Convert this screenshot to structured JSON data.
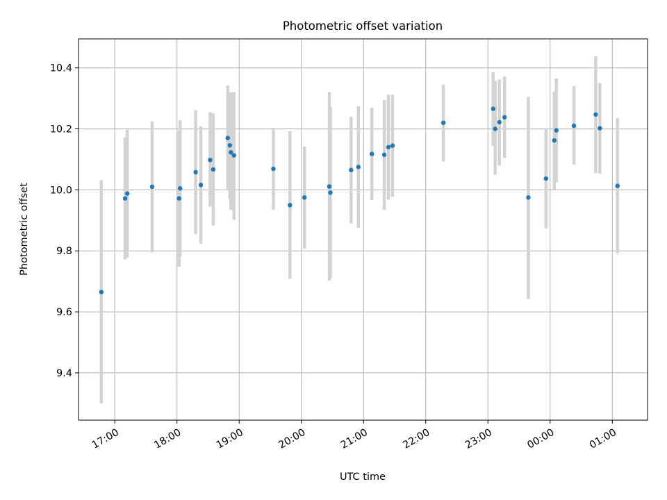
{
  "chart_data": {
    "type": "scatter",
    "title": "Photometric offset variation",
    "xlabel": "UTC time",
    "ylabel": "Photometric offset",
    "x_axis_type": "time",
    "x_range": [
      "16:25",
      "01:34"
    ],
    "ylim": [
      9.245,
      10.495
    ],
    "x_ticks": [
      "17:00",
      "18:00",
      "19:00",
      "20:00",
      "21:00",
      "22:00",
      "23:00",
      "00:00",
      "01:00"
    ],
    "y_ticks": [
      9.4,
      9.6,
      9.8,
      10.0,
      10.2,
      10.4
    ],
    "y_tick_labels": [
      "9.4",
      "9.6",
      "9.8",
      "10.0",
      "10.2",
      "10.4"
    ],
    "grid": true,
    "marker_color": "#1f77b4",
    "errorbar_color": "#d3d3d3",
    "points": [
      {
        "t": "16:47",
        "y": 9.665,
        "low": 9.3,
        "high": 10.032
      },
      {
        "t": "17:10",
        "y": 9.972,
        "low": 9.772,
        "high": 10.172
      },
      {
        "t": "17:12",
        "y": 9.988,
        "low": 9.778,
        "high": 10.198
      },
      {
        "t": "17:36",
        "y": 10.01,
        "low": 9.795,
        "high": 10.225
      },
      {
        "t": "18:02",
        "y": 9.972,
        "low": 9.748,
        "high": 10.195
      },
      {
        "t": "18:03",
        "y": 10.005,
        "low": 9.782,
        "high": 10.228
      },
      {
        "t": "18:18",
        "y": 10.058,
        "low": 9.855,
        "high": 10.261
      },
      {
        "t": "18:23",
        "y": 10.016,
        "low": 9.823,
        "high": 10.208
      },
      {
        "t": "18:32",
        "y": 10.098,
        "low": 9.945,
        "high": 10.255
      },
      {
        "t": "18:35",
        "y": 10.067,
        "low": 9.883,
        "high": 10.251
      },
      {
        "t": "18:49",
        "y": 10.17,
        "low": 10.002,
        "high": 10.342
      },
      {
        "t": "18:51",
        "y": 10.146,
        "low": 9.972,
        "high": 10.32
      },
      {
        "t": "18:52",
        "y": 10.123,
        "low": 9.935,
        "high": 10.32
      },
      {
        "t": "18:55",
        "y": 10.113,
        "low": 9.902,
        "high": 10.32
      },
      {
        "t": "19:33",
        "y": 10.069,
        "low": 9.935,
        "high": 10.203
      },
      {
        "t": "19:49",
        "y": 9.95,
        "low": 9.708,
        "high": 10.192
      },
      {
        "t": "20:03",
        "y": 9.975,
        "low": 9.808,
        "high": 10.142
      },
      {
        "t": "20:27",
        "y": 10.011,
        "low": 9.703,
        "high": 10.32
      },
      {
        "t": "20:28",
        "y": 9.991,
        "low": 9.711,
        "high": 10.271
      },
      {
        "t": "20:48",
        "y": 10.065,
        "low": 9.89,
        "high": 10.24
      },
      {
        "t": "20:55",
        "y": 10.075,
        "low": 9.876,
        "high": 10.274
      },
      {
        "t": "21:08",
        "y": 10.118,
        "low": 9.967,
        "high": 10.269
      },
      {
        "t": "21:20",
        "y": 10.115,
        "low": 9.935,
        "high": 10.295
      },
      {
        "t": "21:24",
        "y": 10.14,
        "low": 9.968,
        "high": 10.312
      },
      {
        "t": "21:28",
        "y": 10.145,
        "low": 9.978,
        "high": 10.312
      },
      {
        "t": "22:17",
        "y": 10.22,
        "low": 10.093,
        "high": 10.345
      },
      {
        "t": "23:05",
        "y": 10.266,
        "low": 10.145,
        "high": 10.385
      },
      {
        "t": "23:07",
        "y": 10.2,
        "low": 10.05,
        "high": 10.357
      },
      {
        "t": "23:11",
        "y": 10.222,
        "low": 10.08,
        "high": 10.362
      },
      {
        "t": "23:16",
        "y": 10.238,
        "low": 10.105,
        "high": 10.372
      },
      {
        "t": "23:39",
        "y": 9.975,
        "low": 9.642,
        "high": 10.305
      },
      {
        "t": "23:56",
        "y": 10.037,
        "low": 9.873,
        "high": 10.2
      },
      {
        "t": "00:04",
        "y": 10.162,
        "low": 10.002,
        "high": 10.322
      },
      {
        "t": "00:06",
        "y": 10.195,
        "low": 10.025,
        "high": 10.365
      },
      {
        "t": "00:23",
        "y": 10.21,
        "low": 10.083,
        "high": 10.34
      },
      {
        "t": "00:44",
        "y": 10.247,
        "low": 10.055,
        "high": 10.438
      },
      {
        "t": "00:48",
        "y": 10.202,
        "low": 10.053,
        "high": 10.35
      },
      {
        "t": "01:05",
        "y": 10.013,
        "low": 9.792,
        "high": 10.235
      }
    ]
  }
}
